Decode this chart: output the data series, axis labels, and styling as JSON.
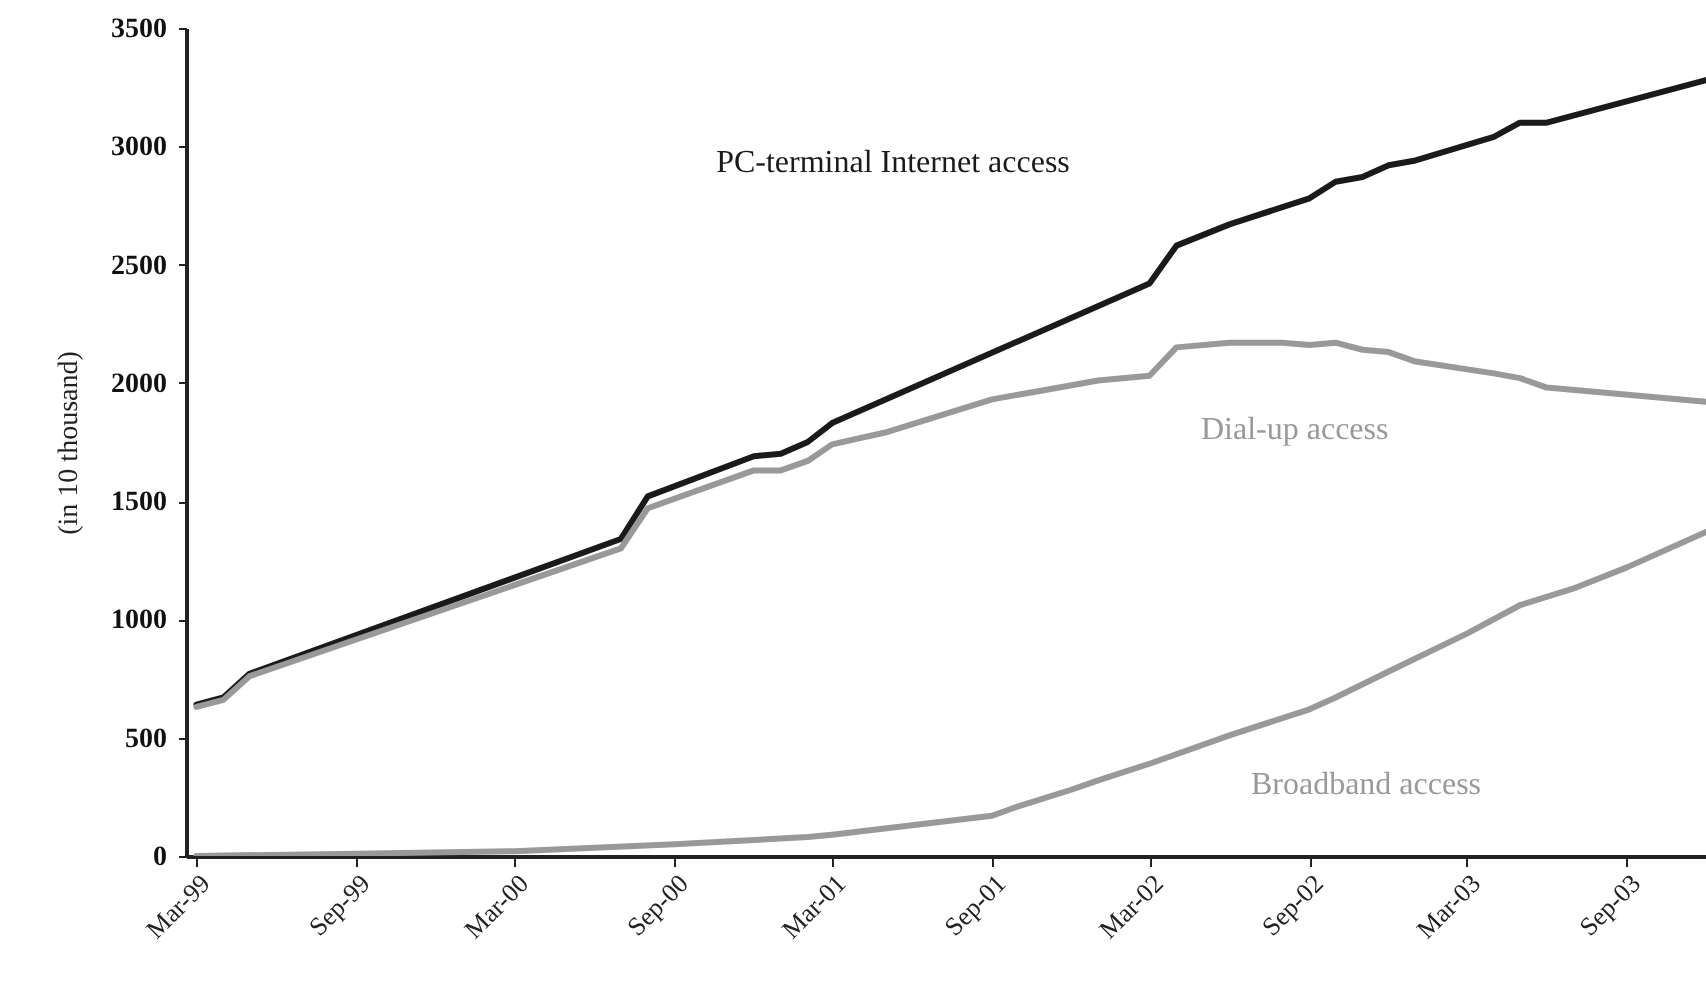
{
  "chart_data": {
    "type": "line",
    "ylabel": "(in 10 thousand)",
    "xlim": [
      "1999-02-17",
      "2003-12-01"
    ],
    "ylim": [
      0,
      3500
    ],
    "xticks": [
      {
        "value": "1999-03",
        "label": "Mar-99"
      },
      {
        "value": "1999-09",
        "label": "Sep-99"
      },
      {
        "value": "2000-03",
        "label": "Mar-00"
      },
      {
        "value": "2000-09",
        "label": "Sep-00"
      },
      {
        "value": "2001-03",
        "label": "Mar-01"
      },
      {
        "value": "2001-09",
        "label": "Sep-01"
      },
      {
        "value": "2002-03",
        "label": "Mar-02"
      },
      {
        "value": "2002-09",
        "label": "Sep-02"
      },
      {
        "value": "2003-03",
        "label": "Mar-03"
      },
      {
        "value": "2003-09",
        "label": "Sep-03"
      }
    ],
    "yticks": [
      0,
      500,
      1000,
      1500,
      2000,
      2500,
      3000,
      3500
    ],
    "grid": false,
    "legend": false,
    "marker": "none",
    "line_style": "solid",
    "series": [
      {
        "name": "PC-terminal Internet access",
        "color": "#1a1a1a",
        "x": [
          "1999-03",
          "1999-04",
          "1999-05",
          "2000-07",
          "2000-08",
          "2000-12",
          "2001-01",
          "2001-02",
          "2001-03",
          "2002-03",
          "2002-04",
          "2002-06",
          "2002-09",
          "2002-10",
          "2002-11",
          "2002-12",
          "2003-01",
          "2003-04",
          "2003-05",
          "2003-06",
          "2003-12"
        ],
        "values": [
          640,
          670,
          770,
          1340,
          1520,
          1690,
          1700,
          1750,
          1830,
          2420,
          2580,
          2670,
          2780,
          2850,
          2870,
          2920,
          2940,
          3040,
          3100,
          3100,
          3280
        ]
      },
      {
        "name": "Dial-up access",
        "color": "#999999",
        "x": [
          "1999-03",
          "1999-04",
          "1999-05",
          "2000-07",
          "2000-08",
          "2000-12",
          "2001-01",
          "2001-02",
          "2001-03",
          "2001-05",
          "2001-09",
          "2001-11",
          "2002-01",
          "2002-03",
          "2002-04",
          "2002-06",
          "2002-08",
          "2002-09",
          "2002-10",
          "2002-11",
          "2002-12",
          "2003-01",
          "2003-04",
          "2003-05",
          "2003-06",
          "2003-12"
        ],
        "values": [
          630,
          660,
          760,
          1300,
          1470,
          1630,
          1630,
          1670,
          1740,
          1790,
          1930,
          1970,
          2010,
          2030,
          2150,
          2170,
          2170,
          2160,
          2170,
          2140,
          2130,
          2090,
          2040,
          2020,
          1980,
          1920
        ]
      },
      {
        "name": "Broadband access",
        "color": "#999999",
        "x": [
          "1999-03",
          "1999-09",
          "2000-03",
          "2000-09",
          "2001-02",
          "2001-03",
          "2001-06",
          "2001-09",
          "2001-10",
          "2001-12",
          "2002-01",
          "2002-03",
          "2002-06",
          "2002-09",
          "2002-10",
          "2002-12",
          "2003-03",
          "2003-05",
          "2003-07",
          "2003-09",
          "2003-12"
        ],
        "values": [
          0,
          10,
          20,
          50,
          80,
          90,
          130,
          170,
          210,
          280,
          320,
          390,
          510,
          620,
          670,
          780,
          940,
          1060,
          1130,
          1220,
          1370
        ]
      }
    ]
  }
}
